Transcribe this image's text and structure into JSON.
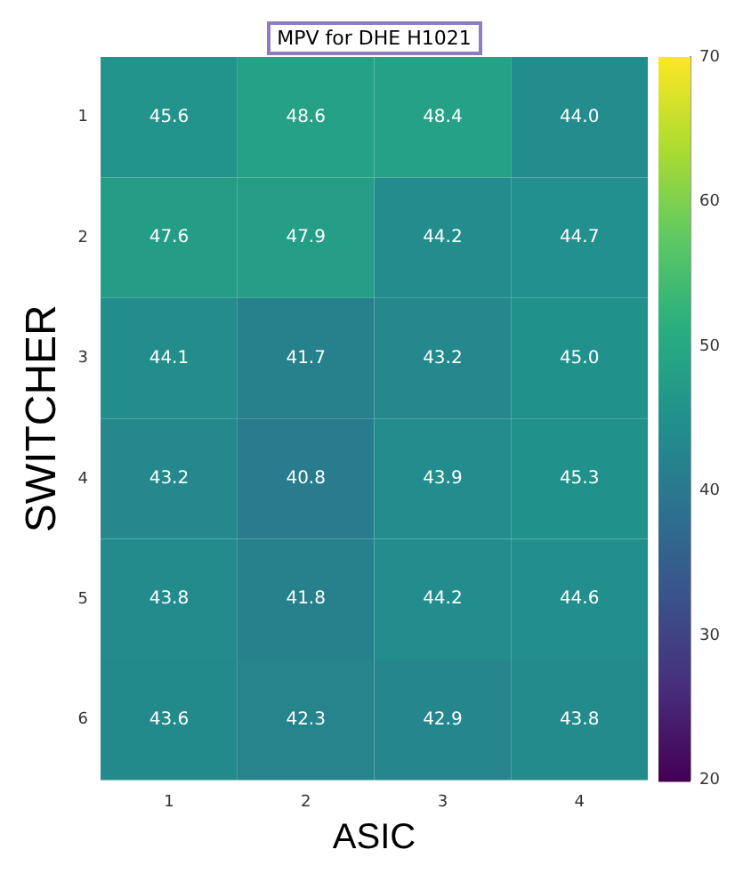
{
  "chart_data": {
    "type": "heatmap",
    "title": "MPV for DHE H1021",
    "xlabel": "ASIC",
    "ylabel": "SWITCHER",
    "categories": [
      "1",
      "2",
      "3",
      "4"
    ],
    "y_categories": [
      "1",
      "2",
      "3",
      "4",
      "5",
      "6"
    ],
    "cells": [
      [
        45.6,
        48.6,
        48.4,
        44.0
      ],
      [
        47.6,
        47.9,
        44.2,
        44.7
      ],
      [
        44.1,
        41.7,
        43.2,
        45.0
      ],
      [
        43.2,
        40.8,
        43.9,
        45.3
      ],
      [
        43.8,
        41.8,
        44.2,
        44.6
      ],
      [
        43.6,
        42.3,
        42.9,
        43.8
      ]
    ],
    "cell_labels": [
      [
        "45.6",
        "48.6",
        "48.4",
        "44.0"
      ],
      [
        "47.6",
        "47.9",
        "44.2",
        "44.7"
      ],
      [
        "44.1",
        "41.7",
        "43.2",
        "45.0"
      ],
      [
        "43.2",
        "40.8",
        "43.9",
        "45.3"
      ],
      [
        "43.8",
        "41.8",
        "44.2",
        "44.6"
      ],
      [
        "43.6",
        "42.3",
        "42.9",
        "43.8"
      ]
    ],
    "clim": [
      20,
      70
    ],
    "cticks": [
      20,
      30,
      40,
      50,
      60,
      70
    ],
    "data_labels": true
  }
}
